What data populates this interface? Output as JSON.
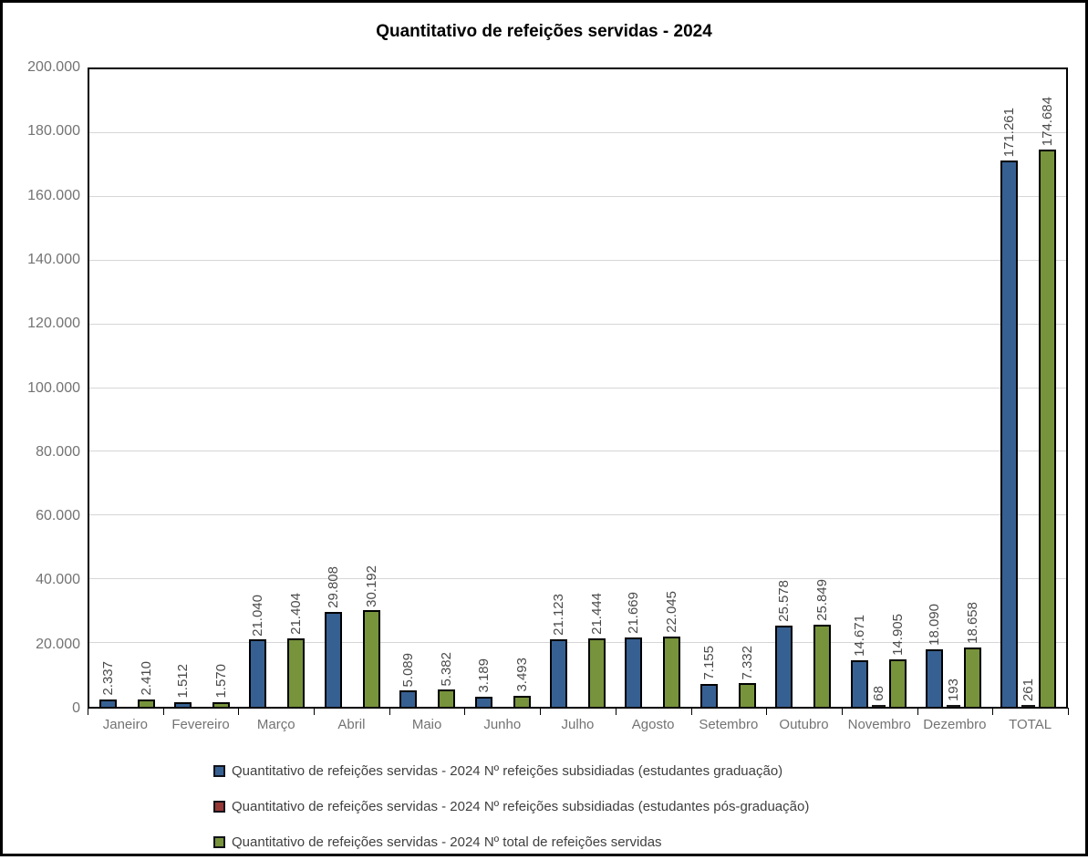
{
  "title": "Quantitativo de refeições servidas - 2024",
  "colors": {
    "series_blue": "#376092",
    "series_red": "#953735",
    "series_green": "#77933C",
    "bar_border": "#000000",
    "gridline": "#D6D6D6",
    "plot_border": "#000000",
    "frame_border": "#000000",
    "axis_text": "#737373",
    "data_label_text": "#4A4A4A",
    "legend_text": "#404040",
    "title_text": "#000000"
  },
  "chart_data": {
    "type": "bar",
    "title": "Quantitativo de refeições servidas - 2024",
    "categories": [
      "Janeiro",
      "Fevereiro",
      "Março",
      "Abril",
      "Maio",
      "Junho",
      "Julho",
      "Agosto",
      "Setembro",
      "Outubro",
      "Novembro",
      "Dezembro",
      "TOTAL"
    ],
    "series": [
      {
        "name": "Quantitativo de refeições servidas - 2024 Nº refeições subsidiadas (estudantes graduação)",
        "color": "#376092",
        "values": [
          2337,
          1512,
          21040,
          29808,
          5089,
          3189,
          21123,
          21669,
          7155,
          25578,
          14671,
          18090,
          171261
        ],
        "labels": [
          "2.337",
          "1.512",
          "21.040",
          "29.808",
          "5.089",
          "3.189",
          "21.123",
          "21.669",
          "7.155",
          "25.578",
          "14.671",
          "18.090",
          "171.261"
        ]
      },
      {
        "name": "Quantitativo de refeições servidas - 2024 Nº refeições subsidiadas (estudantes pós-graduação)",
        "color": "#953735",
        "values": [
          null,
          null,
          null,
          null,
          null,
          null,
          null,
          null,
          null,
          null,
          68,
          193,
          261
        ],
        "labels": [
          null,
          null,
          null,
          null,
          null,
          null,
          null,
          null,
          null,
          null,
          "68",
          "193",
          "261"
        ]
      },
      {
        "name": "Quantitativo de refeições servidas - 2024 Nº total de refeições servidas",
        "color": "#77933C",
        "values": [
          2410,
          1570,
          21404,
          30192,
          5382,
          3493,
          21444,
          22045,
          7332,
          25849,
          14905,
          18658,
          174684
        ],
        "labels": [
          "2.410",
          "1.570",
          "21.404",
          "30.192",
          "5.382",
          "3.493",
          "21.444",
          "22.045",
          "7.332",
          "25.849",
          "14.905",
          "18.658",
          "174.684"
        ]
      }
    ],
    "ylim": [
      0,
      200000
    ],
    "ytick_step": 20000,
    "ytick_labels": [
      "0",
      "20.000",
      "40.000",
      "60.000",
      "80.000",
      "100.000",
      "120.000",
      "140.000",
      "160.000",
      "180.000",
      "200.000"
    ],
    "grid": true,
    "legend_position": "bottom",
    "data_label_orientation": "vertical"
  },
  "legend": {
    "items": [
      {
        "label": "Quantitativo de refeições servidas - 2024 Nº refeições subsidiadas (estudantes graduação)",
        "color": "#376092"
      },
      {
        "label": "Quantitativo de refeições servidas - 2024 Nº refeições subsidiadas (estudantes pós-graduação)",
        "color": "#953735"
      },
      {
        "label": "Quantitativo de refeições servidas - 2024 Nº total de refeições servidas",
        "color": "#77933C"
      }
    ]
  }
}
